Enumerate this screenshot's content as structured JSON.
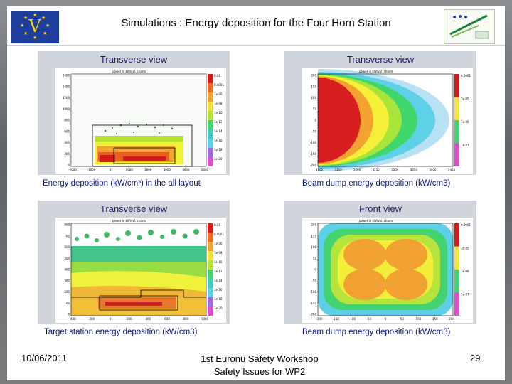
{
  "slide": {
    "title": "Simulations : Energy deposition for the Four Horn Station",
    "flag_icon": "eu-flag-icon",
    "logo_icon": "euronu-logo-icon",
    "colors": {
      "caption": "#0b1680",
      "panel_title": "#1d1e6a",
      "panel_bg": "#cfd5da"
    }
  },
  "panels": [
    {
      "title": "Transverse view",
      "caption": "Energy deposition (kW/cm³) in the all layout",
      "plot_header": "power in kW/vol. charm",
      "y_ticks": [
        "1600",
        "1400",
        "1200",
        "1000",
        "800",
        "600",
        "400",
        "200",
        "0"
      ],
      "x_ticks": [
        "-2000",
        "-1000",
        "0",
        "1000",
        "2000",
        "3000",
        "4000",
        "5000"
      ],
      "legend": [
        "0.01",
        "0.0001",
        "1e-06",
        "1e-08",
        "1e-10",
        "1e-12",
        "1e-14",
        "1e-16",
        "1e-18",
        "1e-20"
      ]
    },
    {
      "title": "Transverse view",
      "caption": "Beam dump energy deposition (kW/cm3)",
      "plot_header": "power in kW/vol. charm",
      "y_ticks": [
        "200",
        "150",
        "100",
        "50",
        "0",
        "-50",
        "-100",
        "-150",
        "-200"
      ],
      "x_ticks": [
        "3100",
        "3150",
        "3200",
        "3250",
        "3300",
        "3350",
        "3400",
        "3450"
      ],
      "legend": [
        "0.0001",
        "1e-05",
        "1e-06",
        "1e-07"
      ]
    },
    {
      "title": "Transverse view",
      "caption": "Target station energy deposition (kW/cm3)",
      "plot_header": "power in kW/vol. charm",
      "y_ticks": [
        "800",
        "700",
        "600",
        "500",
        "400",
        "300",
        "200",
        "100",
        "0"
      ],
      "x_ticks": [
        "-400",
        "-200",
        "0",
        "200",
        "400",
        "600",
        "800",
        "1000"
      ],
      "legend": [
        "0.01",
        "0.0001",
        "1e-06",
        "1e-08",
        "1e-10",
        "1e-12",
        "1e-14",
        "1e-16",
        "1e-18",
        "1e-20"
      ]
    },
    {
      "title": "Front view",
      "caption": "Beam dump energy deposition (kW/cm3)",
      "plot_header": "power in kW/vol. charm",
      "y_ticks": [
        "200",
        "150",
        "100",
        "50",
        "0",
        "-50",
        "-100",
        "-150",
        "-200"
      ],
      "x_ticks": [
        "-200",
        "-150",
        "-100",
        "-50",
        "0",
        "50",
        "100",
        "150",
        "200"
      ],
      "legend": [
        "0.0001",
        "1e-05",
        "1e-06",
        "1e-07"
      ]
    }
  ],
  "footer": {
    "date": "10/06/2011",
    "event_line1": "1st Euronu Safety Workshop",
    "event_line2": "Safety Issues for WP2",
    "page": "29"
  }
}
